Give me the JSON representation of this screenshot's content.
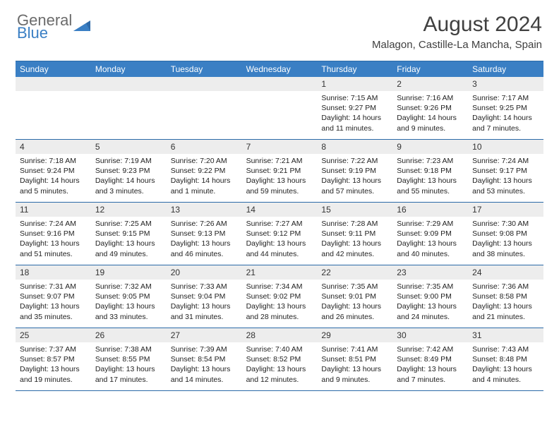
{
  "logo": {
    "word1": "General",
    "word2": "Blue"
  },
  "title": "August 2024",
  "location": "Malagon, Castille-La Mancha, Spain",
  "dow": [
    "Sunday",
    "Monday",
    "Tuesday",
    "Wednesday",
    "Thursday",
    "Friday",
    "Saturday"
  ],
  "colors": {
    "header_bar": "#3a7fc4",
    "rule": "#2b6aa8",
    "band": "#ededed",
    "text": "#222222",
    "logo_gray": "#6b6b6b",
    "logo_blue": "#3a7fc4"
  },
  "weeks": [
    [
      {
        "n": "",
        "sunrise": "",
        "sunset": "",
        "daylight": ""
      },
      {
        "n": "",
        "sunrise": "",
        "sunset": "",
        "daylight": ""
      },
      {
        "n": "",
        "sunrise": "",
        "sunset": "",
        "daylight": ""
      },
      {
        "n": "",
        "sunrise": "",
        "sunset": "",
        "daylight": ""
      },
      {
        "n": "1",
        "sunrise": "Sunrise: 7:15 AM",
        "sunset": "Sunset: 9:27 PM",
        "daylight": "Daylight: 14 hours and 11 minutes."
      },
      {
        "n": "2",
        "sunrise": "Sunrise: 7:16 AM",
        "sunset": "Sunset: 9:26 PM",
        "daylight": "Daylight: 14 hours and 9 minutes."
      },
      {
        "n": "3",
        "sunrise": "Sunrise: 7:17 AM",
        "sunset": "Sunset: 9:25 PM",
        "daylight": "Daylight: 14 hours and 7 minutes."
      }
    ],
    [
      {
        "n": "4",
        "sunrise": "Sunrise: 7:18 AM",
        "sunset": "Sunset: 9:24 PM",
        "daylight": "Daylight: 14 hours and 5 minutes."
      },
      {
        "n": "5",
        "sunrise": "Sunrise: 7:19 AM",
        "sunset": "Sunset: 9:23 PM",
        "daylight": "Daylight: 14 hours and 3 minutes."
      },
      {
        "n": "6",
        "sunrise": "Sunrise: 7:20 AM",
        "sunset": "Sunset: 9:22 PM",
        "daylight": "Daylight: 14 hours and 1 minute."
      },
      {
        "n": "7",
        "sunrise": "Sunrise: 7:21 AM",
        "sunset": "Sunset: 9:21 PM",
        "daylight": "Daylight: 13 hours and 59 minutes."
      },
      {
        "n": "8",
        "sunrise": "Sunrise: 7:22 AM",
        "sunset": "Sunset: 9:19 PM",
        "daylight": "Daylight: 13 hours and 57 minutes."
      },
      {
        "n": "9",
        "sunrise": "Sunrise: 7:23 AM",
        "sunset": "Sunset: 9:18 PM",
        "daylight": "Daylight: 13 hours and 55 minutes."
      },
      {
        "n": "10",
        "sunrise": "Sunrise: 7:24 AM",
        "sunset": "Sunset: 9:17 PM",
        "daylight": "Daylight: 13 hours and 53 minutes."
      }
    ],
    [
      {
        "n": "11",
        "sunrise": "Sunrise: 7:24 AM",
        "sunset": "Sunset: 9:16 PM",
        "daylight": "Daylight: 13 hours and 51 minutes."
      },
      {
        "n": "12",
        "sunrise": "Sunrise: 7:25 AM",
        "sunset": "Sunset: 9:15 PM",
        "daylight": "Daylight: 13 hours and 49 minutes."
      },
      {
        "n": "13",
        "sunrise": "Sunrise: 7:26 AM",
        "sunset": "Sunset: 9:13 PM",
        "daylight": "Daylight: 13 hours and 46 minutes."
      },
      {
        "n": "14",
        "sunrise": "Sunrise: 7:27 AM",
        "sunset": "Sunset: 9:12 PM",
        "daylight": "Daylight: 13 hours and 44 minutes."
      },
      {
        "n": "15",
        "sunrise": "Sunrise: 7:28 AM",
        "sunset": "Sunset: 9:11 PM",
        "daylight": "Daylight: 13 hours and 42 minutes."
      },
      {
        "n": "16",
        "sunrise": "Sunrise: 7:29 AM",
        "sunset": "Sunset: 9:09 PM",
        "daylight": "Daylight: 13 hours and 40 minutes."
      },
      {
        "n": "17",
        "sunrise": "Sunrise: 7:30 AM",
        "sunset": "Sunset: 9:08 PM",
        "daylight": "Daylight: 13 hours and 38 minutes."
      }
    ],
    [
      {
        "n": "18",
        "sunrise": "Sunrise: 7:31 AM",
        "sunset": "Sunset: 9:07 PM",
        "daylight": "Daylight: 13 hours and 35 minutes."
      },
      {
        "n": "19",
        "sunrise": "Sunrise: 7:32 AM",
        "sunset": "Sunset: 9:05 PM",
        "daylight": "Daylight: 13 hours and 33 minutes."
      },
      {
        "n": "20",
        "sunrise": "Sunrise: 7:33 AM",
        "sunset": "Sunset: 9:04 PM",
        "daylight": "Daylight: 13 hours and 31 minutes."
      },
      {
        "n": "21",
        "sunrise": "Sunrise: 7:34 AM",
        "sunset": "Sunset: 9:02 PM",
        "daylight": "Daylight: 13 hours and 28 minutes."
      },
      {
        "n": "22",
        "sunrise": "Sunrise: 7:35 AM",
        "sunset": "Sunset: 9:01 PM",
        "daylight": "Daylight: 13 hours and 26 minutes."
      },
      {
        "n": "23",
        "sunrise": "Sunrise: 7:35 AM",
        "sunset": "Sunset: 9:00 PM",
        "daylight": "Daylight: 13 hours and 24 minutes."
      },
      {
        "n": "24",
        "sunrise": "Sunrise: 7:36 AM",
        "sunset": "Sunset: 8:58 PM",
        "daylight": "Daylight: 13 hours and 21 minutes."
      }
    ],
    [
      {
        "n": "25",
        "sunrise": "Sunrise: 7:37 AM",
        "sunset": "Sunset: 8:57 PM",
        "daylight": "Daylight: 13 hours and 19 minutes."
      },
      {
        "n": "26",
        "sunrise": "Sunrise: 7:38 AM",
        "sunset": "Sunset: 8:55 PM",
        "daylight": "Daylight: 13 hours and 17 minutes."
      },
      {
        "n": "27",
        "sunrise": "Sunrise: 7:39 AM",
        "sunset": "Sunset: 8:54 PM",
        "daylight": "Daylight: 13 hours and 14 minutes."
      },
      {
        "n": "28",
        "sunrise": "Sunrise: 7:40 AM",
        "sunset": "Sunset: 8:52 PM",
        "daylight": "Daylight: 13 hours and 12 minutes."
      },
      {
        "n": "29",
        "sunrise": "Sunrise: 7:41 AM",
        "sunset": "Sunset: 8:51 PM",
        "daylight": "Daylight: 13 hours and 9 minutes."
      },
      {
        "n": "30",
        "sunrise": "Sunrise: 7:42 AM",
        "sunset": "Sunset: 8:49 PM",
        "daylight": "Daylight: 13 hours and 7 minutes."
      },
      {
        "n": "31",
        "sunrise": "Sunrise: 7:43 AM",
        "sunset": "Sunset: 8:48 PM",
        "daylight": "Daylight: 13 hours and 4 minutes."
      }
    ]
  ]
}
